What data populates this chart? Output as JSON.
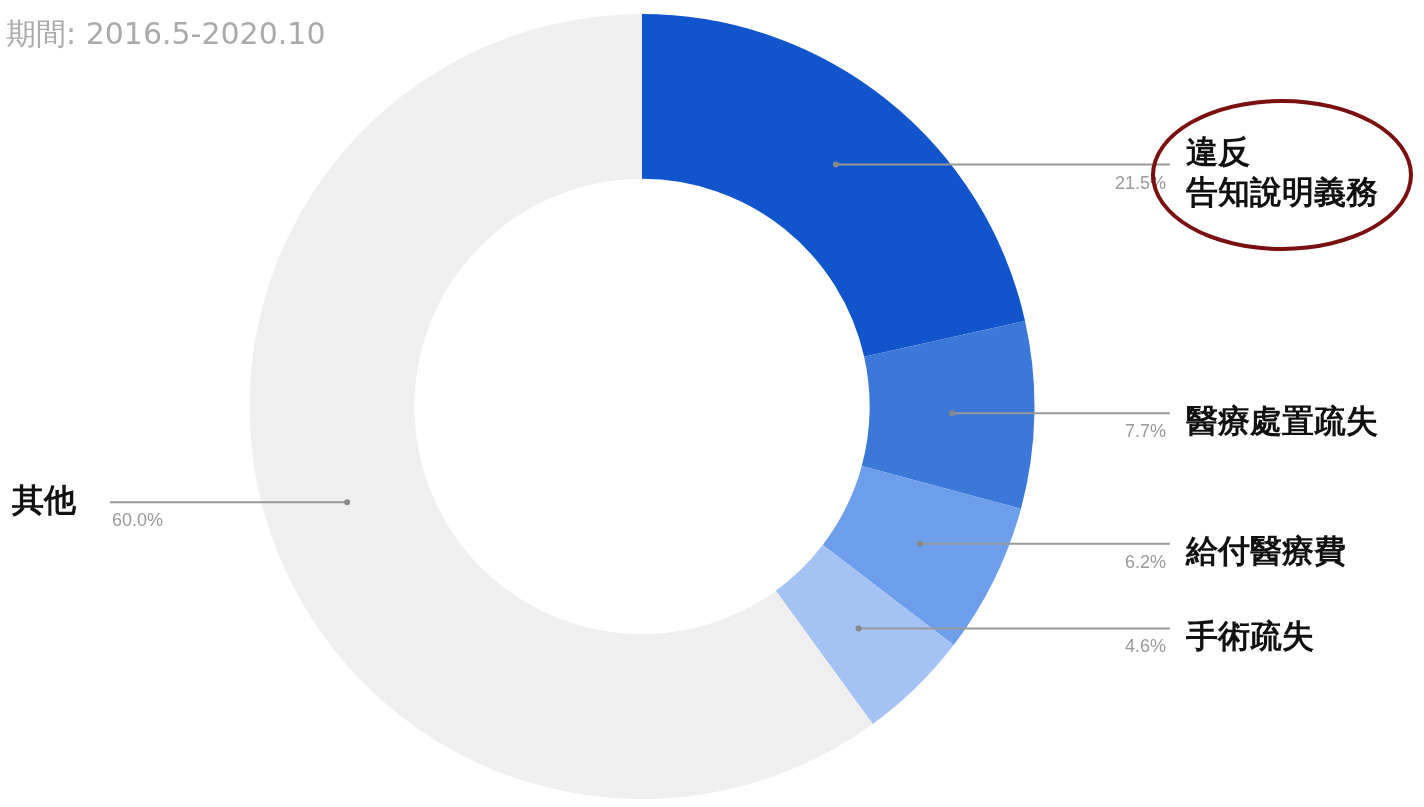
{
  "chart_data": {
    "type": "donut",
    "title": "期間: 2016.5-2020.10",
    "categories": [
      "違反告知說明義務",
      "醫療處置疏失",
      "給付醫療費",
      "手術疏失",
      "其他"
    ],
    "values": [
      21.5,
      7.7,
      6.2,
      4.6,
      60.0
    ],
    "colors": [
      "#1155cc",
      "#3c78d8",
      "#6d9eeb",
      "#a4c2f4",
      "#efefef"
    ],
    "value_labels": [
      "21.5%",
      "7.7%",
      "6.2%",
      "4.6%",
      "60.0%"
    ],
    "legend": false
  }
}
